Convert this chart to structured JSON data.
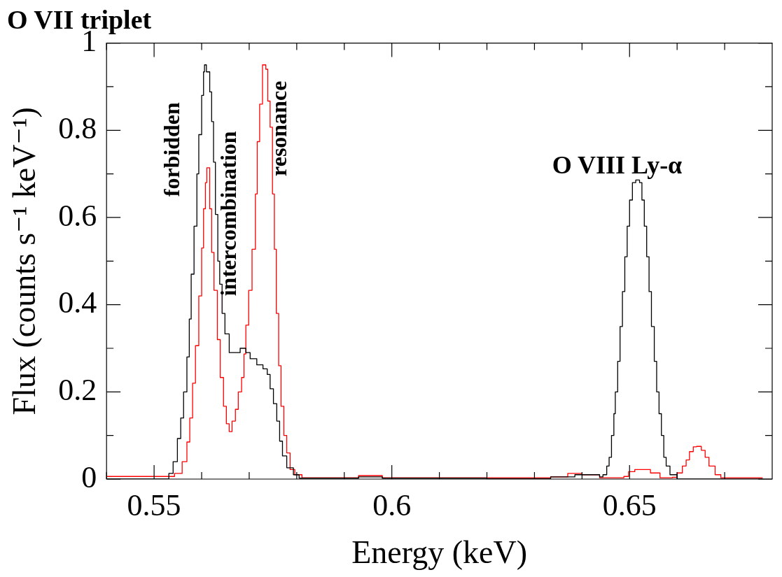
{
  "chart_data": {
    "type": "step",
    "title": "O VII triplet",
    "xlabel": "Energy (keV)",
    "ylabel": "Flux (counts s⁻¹ keV⁻¹)",
    "xlim": [
      0.54,
      0.68
    ],
    "ylim": [
      0,
      1
    ],
    "xticks": [
      {
        "value": 0.54,
        "label": null
      },
      0.55,
      {
        "value": 0.56,
        "label": null
      },
      {
        "value": 0.57,
        "label": null
      },
      {
        "value": 0.58,
        "label": null
      },
      {
        "value": 0.59,
        "label": null
      },
      0.6,
      {
        "value": 0.61,
        "label": null
      },
      {
        "value": 0.62,
        "label": null
      },
      {
        "value": 0.63,
        "label": null
      },
      {
        "value": 0.64,
        "label": null
      },
      0.65,
      {
        "value": 0.66,
        "label": null
      },
      {
        "value": 0.67,
        "label": null
      }
    ],
    "yticks": [
      0,
      {
        "value": 0.1,
        "label": null
      },
      0.2,
      {
        "value": 0.3,
        "label": null
      },
      0.4,
      {
        "value": 0.5,
        "label": null
      },
      0.6,
      {
        "value": 0.7,
        "label": null
      },
      0.8,
      {
        "value": 0.9,
        "label": null
      },
      1
    ],
    "grid": false,
    "legend": false,
    "marker": "none",
    "line_style": "solid",
    "annotations": [
      "forbidden",
      "intercombination",
      "resonance",
      "O VIII Ly-α"
    ],
    "series": [
      {
        "color": "#000000",
        "x": [
          0.54,
          0.55,
          0.5511,
          0.5531,
          0.554,
          0.5549,
          0.5556,
          0.5562,
          0.5569,
          0.5574,
          0.5578,
          0.5584,
          0.559,
          0.5594,
          0.56,
          0.5604,
          0.5606,
          0.561,
          0.5617,
          0.5621,
          0.5625,
          0.5629,
          0.5634,
          0.5638,
          0.5643,
          0.5649,
          0.5658,
          0.5667,
          0.5681,
          0.5693,
          0.5702,
          0.5716,
          0.5729,
          0.5738,
          0.5744,
          0.5751,
          0.5758,
          0.5764,
          0.577,
          0.5779,
          0.5793,
          0.5805,
          0.588,
          0.593,
          0.598,
          0.62,
          0.6334,
          0.6385,
          0.6437,
          0.6444,
          0.6452,
          0.6457,
          0.6462,
          0.6467,
          0.647,
          0.6475,
          0.648,
          0.6485,
          0.649,
          0.6495,
          0.65,
          0.6506,
          0.6513,
          0.6521,
          0.6526,
          0.6531,
          0.6536,
          0.6541,
          0.6546,
          0.6552,
          0.6557,
          0.6562,
          0.6567,
          0.6572,
          0.6577,
          0.6585,
          0.66,
          0.678
        ],
        "values": [
          0,
          0,
          0,
          0.013,
          0.04,
          0.093,
          0.14,
          0.2,
          0.28,
          0.367,
          0.47,
          0.58,
          0.7,
          0.79,
          0.88,
          0.934,
          0.95,
          0.934,
          0.888,
          0.82,
          0.727,
          0.607,
          0.5,
          0.447,
          0.38,
          0.333,
          0.29,
          0.29,
          0.3,
          0.29,
          0.276,
          0.262,
          0.253,
          0.24,
          0.207,
          0.173,
          0.133,
          0.087,
          0.053,
          0.026,
          0.01,
          0.002,
          0.002,
          0.005,
          0.002,
          0.001,
          0.005,
          0.01,
          0.005,
          0.01,
          0.03,
          0.05,
          0.1,
          0.15,
          0.2,
          0.27,
          0.35,
          0.43,
          0.51,
          0.58,
          0.64,
          0.68,
          0.686,
          0.68,
          0.64,
          0.58,
          0.51,
          0.43,
          0.35,
          0.27,
          0.2,
          0.15,
          0.1,
          0.05,
          0.03,
          0.01,
          0,
          0
        ]
      },
      {
        "color": "#ff0000",
        "x": [
          0.54,
          0.5498,
          0.5543,
          0.5559,
          0.5569,
          0.5575,
          0.5581,
          0.5587,
          0.5594,
          0.56,
          0.5604,
          0.5608,
          0.5611,
          0.5617,
          0.5621,
          0.5626,
          0.5633,
          0.5639,
          0.5646,
          0.5652,
          0.5658,
          0.5664,
          0.5671,
          0.5677,
          0.5684,
          0.5689,
          0.5693,
          0.5699,
          0.5706,
          0.5713,
          0.5717,
          0.5722,
          0.5728,
          0.5735,
          0.5739,
          0.5744,
          0.5749,
          0.5753,
          0.5757,
          0.5762,
          0.5767,
          0.5773,
          0.5779,
          0.5786,
          0.5796,
          0.5811,
          0.588,
          0.593,
          0.598,
          0.62,
          0.6334,
          0.637,
          0.64,
          0.6437,
          0.6488,
          0.6498,
          0.6511,
          0.6534,
          0.6544,
          0.6564,
          0.659,
          0.66,
          0.6611,
          0.6619,
          0.6626,
          0.6634,
          0.6641,
          0.6651,
          0.6659,
          0.6667,
          0.668,
          0.6692,
          0.678
        ],
        "values": [
          0.006,
          0.006,
          0.013,
          0.04,
          0.085,
          0.14,
          0.22,
          0.306,
          0.42,
          0.53,
          0.62,
          0.68,
          0.714,
          0.62,
          0.52,
          0.433,
          0.32,
          0.233,
          0.167,
          0.127,
          0.109,
          0.133,
          0.16,
          0.2,
          0.233,
          0.287,
          0.353,
          0.433,
          0.527,
          0.654,
          0.774,
          0.86,
          0.95,
          0.94,
          0.867,
          0.807,
          0.654,
          0.527,
          0.38,
          0.26,
          0.167,
          0.1,
          0.06,
          0.022,
          0.01,
          0.003,
          0.003,
          0.008,
          0.003,
          0.003,
          0.005,
          0.013,
          0.01,
          0.003,
          0.006,
          0.017,
          0.022,
          0.022,
          0.014,
          0.003,
          0.004,
          0.014,
          0.03,
          0.044,
          0.063,
          0.074,
          0.075,
          0.066,
          0.05,
          0.03,
          0.01,
          0.003,
          0.003
        ]
      }
    ]
  }
}
